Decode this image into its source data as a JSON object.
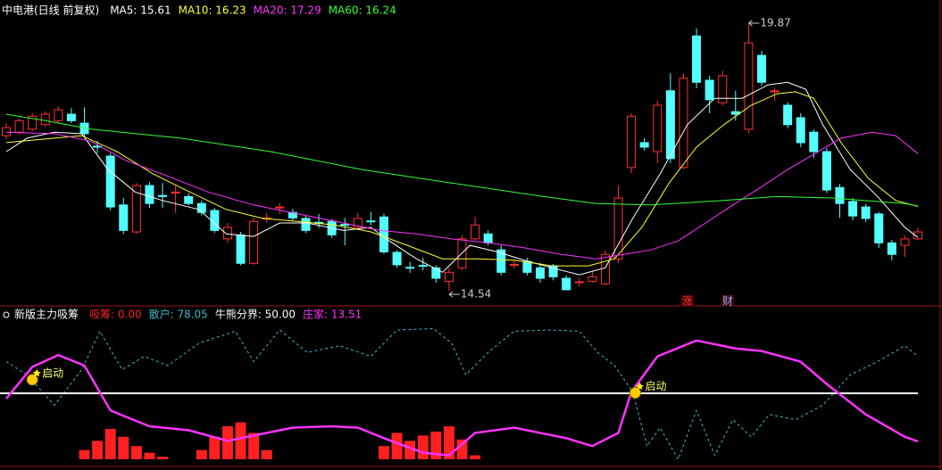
{
  "chart_data": [
    {
      "type": "candlestick",
      "title": "中电港(日线 前复权)",
      "ylim": [
        14.29,
        20.37
      ],
      "xlim": [
        0,
        70
      ],
      "up_color": "#ff3232",
      "down_color": "#54ffff",
      "open": [
        17.65,
        17.72,
        17.78,
        17.87,
        17.95,
        18.08,
        17.9,
        17.44,
        17.24,
        16.26,
        15.72,
        16.65,
        16.45,
        16.5,
        16.43,
        16.29,
        16.15,
        15.58,
        15.66,
        15.09,
        15.98,
        16.2,
        16.11,
        15.99,
        15.91,
        15.93,
        15.87,
        15.81,
        15.94,
        16.02,
        15.31,
        15.01,
        15.05,
        15.0,
        14.73,
        15.0,
        15.58,
        15.68,
        15.36,
        15.06,
        15.13,
        15.0,
        15.04,
        14.79,
        14.71,
        14.73,
        14.68,
        15.18,
        17.01,
        17.51,
        17.33,
        18.55,
        17.01,
        19.65,
        18.76,
        18.31,
        18.13,
        17.78,
        19.26,
        18.53,
        18.26,
        18.01,
        17.72,
        17.33,
        16.61,
        16.33,
        16.22,
        16.08,
        15.5,
        15.45,
        15.58
      ],
      "close": [
        17.81,
        17.95,
        18.04,
        18.08,
        18.17,
        17.95,
        17.69,
        17.42,
        16.22,
        15.75,
        16.65,
        16.29,
        16.43,
        16.52,
        16.29,
        16.11,
        15.75,
        15.81,
        15.09,
        15.93,
        16.0,
        16.22,
        16.0,
        15.75,
        15.9,
        15.66,
        15.86,
        15.99,
        15.93,
        15.32,
        15.06,
        15.0,
        15.04,
        14.79,
        14.91,
        15.58,
        15.86,
        15.5,
        14.91,
        15.07,
        14.91,
        14.79,
        14.82,
        14.56,
        14.72,
        14.82,
        15.27,
        16.4,
        18.04,
        17.42,
        18.26,
        17.19,
        18.8,
        18.72,
        18.37,
        18.85,
        18.08,
        19.51,
        18.72,
        18.55,
        17.87,
        17.51,
        17.33,
        16.56,
        16.29,
        16.04,
        15.99,
        15.5,
        15.27,
        15.58,
        15.72
      ],
      "high": [
        17.9,
        18.0,
        18.1,
        18.14,
        18.24,
        18.2,
        18.22,
        17.55,
        17.3,
        16.4,
        16.7,
        16.72,
        16.7,
        16.65,
        16.5,
        16.35,
        16.2,
        15.9,
        15.72,
        16.0,
        16.1,
        16.3,
        16.18,
        16.05,
        16.08,
        15.98,
        16.0,
        16.1,
        16.12,
        16.08,
        15.35,
        15.12,
        15.2,
        15.05,
        15.0,
        15.65,
        16.02,
        15.75,
        15.45,
        15.15,
        15.2,
        15.1,
        15.08,
        14.85,
        14.8,
        14.95,
        15.35,
        16.65,
        18.1,
        17.6,
        18.35,
        18.9,
        18.9,
        19.8,
        18.85,
        18.95,
        18.55,
        19.87,
        19.35,
        18.62,
        18.32,
        18.1,
        17.78,
        17.4,
        16.68,
        16.4,
        16.28,
        16.12,
        15.56,
        15.65,
        15.8
      ],
      "low": [
        17.58,
        17.68,
        17.74,
        17.83,
        17.9,
        17.9,
        17.62,
        17.3,
        16.15,
        15.68,
        15.68,
        16.2,
        16.2,
        16.1,
        16.25,
        16.05,
        15.7,
        15.5,
        15.05,
        15.06,
        15.9,
        16.08,
        15.95,
        15.7,
        15.8,
        15.6,
        15.45,
        15.76,
        15.85,
        15.28,
        15.0,
        14.9,
        14.95,
        14.7,
        14.54,
        14.95,
        15.55,
        15.45,
        14.85,
        14.98,
        14.85,
        14.7,
        14.75,
        14.55,
        14.62,
        14.7,
        14.65,
        15.1,
        16.9,
        17.35,
        17.1,
        17.1,
        16.98,
        18.6,
        18.1,
        18.25,
        17.95,
        17.7,
        18.65,
        18.35,
        17.8,
        17.42,
        17.2,
        16.5,
        16.0,
        15.95,
        15.92,
        15.4,
        15.15,
        15.22,
        15.55
      ],
      "series": [
        {
          "name": "MA5",
          "legend": "MA5: 15.61",
          "color": "#ffffff",
          "x": [
            0,
            1.6,
            3.7,
            5.8,
            7.8,
            9.9,
            12,
            14.8,
            16.9,
            19,
            21,
            23.1,
            25.9,
            28,
            29.4,
            31.5,
            33.5,
            35.6,
            37.7,
            39.8,
            41.9,
            44,
            46,
            48.1,
            50.2,
            52.3,
            54.4,
            56.5,
            58.5,
            60,
            61.4,
            62.7,
            64.8,
            66.9,
            69,
            70
          ],
          "values": [
            17.33,
            17.6,
            17.72,
            17.69,
            16.97,
            16.52,
            16.35,
            16.17,
            15.68,
            15.63,
            15.9,
            15.9,
            15.75,
            15.81,
            15.54,
            15.18,
            14.91,
            15.45,
            15.32,
            15.15,
            15.0,
            14.86,
            15.0,
            15.99,
            16.88,
            17.87,
            18.4,
            18.4,
            18.67,
            18.72,
            18.58,
            17.87,
            16.97,
            16.43,
            15.81,
            15.61
          ]
        },
        {
          "name": "MA10",
          "legend": "MA10: 16.23",
          "color": "#ffff33",
          "x": [
            0,
            3.7,
            5.8,
            8.5,
            11.3,
            14.1,
            16.9,
            19.7,
            22.4,
            25.2,
            28,
            30.8,
            33.5,
            36.3,
            39.1,
            41.9,
            44.7,
            46.7,
            48.8,
            50.9,
            53,
            55.1,
            57.2,
            59.2,
            60.6,
            62,
            64.1,
            66.2,
            68.3,
            70
          ],
          "values": [
            17.51,
            17.6,
            17.65,
            17.33,
            16.88,
            16.52,
            16.17,
            15.99,
            15.93,
            15.86,
            15.72,
            15.45,
            15.18,
            15.18,
            15.15,
            15.04,
            15.04,
            15.18,
            15.81,
            16.7,
            17.42,
            17.87,
            18.26,
            18.49,
            18.53,
            18.4,
            17.51,
            16.79,
            16.35,
            16.23
          ]
        },
        {
          "name": "MA20",
          "legend": "MA20: 17.29",
          "color": "#ff33ff",
          "x": [
            0,
            3.7,
            6.5,
            9.2,
            12,
            15.5,
            19,
            22.4,
            25.9,
            28.7,
            31.5,
            34.2,
            37,
            39.8,
            42.6,
            45.3,
            47.4,
            49.5,
            51.6,
            53.7,
            55.8,
            57.9,
            60,
            62.1,
            64.1,
            66.5,
            68.3,
            70
          ],
          "values": [
            17.72,
            17.69,
            17.54,
            17.15,
            16.88,
            16.52,
            16.26,
            16.08,
            15.9,
            15.75,
            15.68,
            15.58,
            15.5,
            15.4,
            15.27,
            15.18,
            15.27,
            15.36,
            15.54,
            15.9,
            16.26,
            16.61,
            16.97,
            17.29,
            17.6,
            17.72,
            17.65,
            17.29
          ]
        },
        {
          "name": "MA60",
          "legend": "MA60: 16.24",
          "color": "#33ff33",
          "x": [
            0,
            3,
            6.5,
            13.4,
            20.3,
            27.3,
            34.2,
            41.2,
            45.3,
            49.5,
            55.1,
            59.2,
            63.4,
            69,
            70
          ],
          "values": [
            18.08,
            17.95,
            17.78,
            17.6,
            17.33,
            16.97,
            16.7,
            16.43,
            16.29,
            16.26,
            16.35,
            16.43,
            16.4,
            16.29,
            16.24
          ]
        }
      ],
      "extremes": [
        {
          "x": 57,
          "value": 19.87,
          "side": "high"
        },
        {
          "x": 34,
          "value": 14.54,
          "side": "low"
        }
      ],
      "signals": [
        {
          "text": "涨",
          "x": 52.3,
          "color": "#ff3232"
        },
        {
          "text": "财",
          "x": 55.4,
          "color": "#8ab4ff"
        }
      ]
    },
    {
      "type": "line",
      "title": "新版主力吸筹",
      "ylim": [
        0,
        100
      ],
      "xlim": [
        0,
        70
      ],
      "series": [
        {
          "name": "吸筹",
          "legend": "吸筹: 0.00",
          "color": "#ff2020",
          "style": "bar",
          "x": [
            6,
            7,
            8,
            9,
            10,
            11,
            12,
            15,
            16,
            17,
            18,
            19,
            20,
            29,
            30,
            31,
            32,
            33,
            34,
            35,
            36
          ],
          "values": [
            7,
            14,
            23,
            17,
            10,
            5,
            2,
            7,
            17,
            25,
            28,
            20,
            7,
            10,
            20,
            14,
            18,
            21,
            25,
            15,
            3
          ]
        },
        {
          "name": "散户",
          "legend": "散户: 78.05",
          "color": "#3fb8c8",
          "style": "dashed",
          "x": [
            0,
            1.6,
            3.7,
            5.8,
            7.2,
            8.9,
            10.6,
            12.4,
            14.8,
            17.6,
            19,
            21,
            23.1,
            25.6,
            28,
            30,
            32.8,
            34.2,
            35.3,
            37,
            39,
            41.9,
            44,
            45.4,
            46.7,
            48.1,
            49.2,
            50.2,
            51.6,
            53,
            54.4,
            55.8,
            57.2,
            58.6,
            60.6,
            62.7,
            64.8,
            66.9,
            69,
            70
          ],
          "values": [
            74,
            64,
            41,
            68,
            97,
            68,
            78,
            71,
            88,
            97,
            74,
            98,
            81,
            86,
            78,
            98,
            99,
            88,
            64,
            81,
            97,
            98,
            97,
            81,
            71,
            51,
            10,
            24,
            0,
            37,
            3,
            30,
            17,
            34,
            30,
            41,
            64,
            74,
            86,
            78.05
          ]
        },
        {
          "name": "牛熊分界",
          "legend": "牛熊分界: 50.00",
          "color": "#ffffff",
          "style": "level",
          "value": 50
        },
        {
          "name": "庄家",
          "legend": "庄家: 13.51",
          "color": "#ff33ff",
          "style": "solid",
          "x": [
            0,
            2,
            4,
            6,
            8,
            11,
            14,
            17,
            19,
            22,
            25,
            27,
            29,
            32,
            34,
            36,
            39,
            43,
            45,
            47,
            48,
            50,
            53,
            56,
            58,
            61,
            63,
            66,
            69,
            70
          ],
          "values": [
            46,
            70,
            79,
            71,
            37,
            25,
            22,
            14,
            18,
            24,
            25,
            24,
            16,
            5,
            3,
            20,
            24,
            16,
            10,
            20,
            51,
            78,
            90,
            84,
            82,
            74,
            57,
            34,
            17,
            13.51
          ]
        }
      ],
      "markers": [
        {
          "text": "启动",
          "x": 2,
          "y": 63
        },
        {
          "text": "启动",
          "x": 48.3,
          "y": 53
        }
      ]
    }
  ]
}
